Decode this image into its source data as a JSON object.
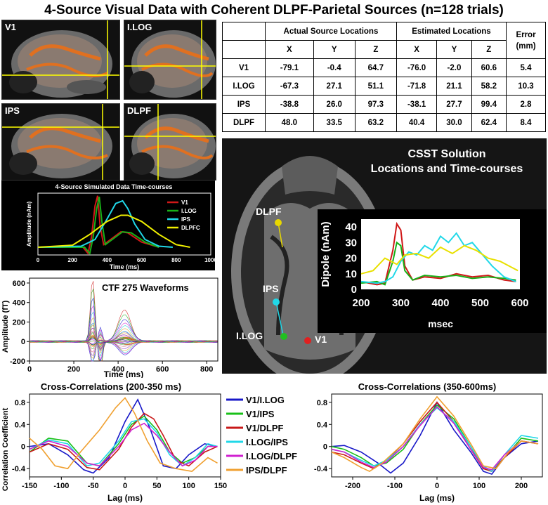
{
  "title": "4-Source Visual Data with Coherent DLPF-Parietal Sources (n=128 trials)",
  "mri_panels": [
    {
      "label": "V1"
    },
    {
      "label": "I.LOG"
    },
    {
      "label": "IPS"
    },
    {
      "label": "DLPF"
    }
  ],
  "table": {
    "group_headers": [
      "Actual Source Locations",
      "Estimated Locations",
      "Error",
      "(mm)"
    ],
    "columns": [
      "X",
      "Y",
      "Z",
      "X",
      "Y",
      "Z"
    ],
    "rows": [
      {
        "name": "V1",
        "values": [
          "-79.1",
          "-0.4",
          "64.7",
          "-76.0",
          "-2.0",
          "60.6"
        ],
        "error": "5.4"
      },
      {
        "name": "I.LOG",
        "values": [
          "-67.3",
          "27.1",
          "51.1",
          "-71.8",
          "21.1",
          "58.2"
        ],
        "error": "10.3"
      },
      {
        "name": "IPS",
        "values": [
          "-38.8",
          "26.0",
          "97.3",
          "-38.1",
          "27.7",
          "99.4"
        ],
        "error": "2.8"
      },
      {
        "name": "DLPF",
        "values": [
          "48.0",
          "33.5",
          "63.2",
          "40.4",
          "30.0",
          "62.4"
        ],
        "error": "8.4"
      }
    ]
  },
  "cssts": {
    "title_line1": "CSST Solution",
    "title_line2": "Locations and Time-courses",
    "labels": [
      "DLPF",
      "IPS",
      "I.LOG",
      "V1"
    ],
    "dot_colors": [
      "#e8d800",
      "#20d8e8",
      "#20c020",
      "#e02020"
    ]
  },
  "chart_data": [
    {
      "type": "line",
      "title": "4-Source Simulated Data Time-courses",
      "xlabel": "Time (ms)",
      "ylabel": "Amplitude (nAm)",
      "xlim": [
        0,
        1000
      ],
      "xticks": [
        "0",
        "200",
        "400",
        "600",
        "800",
        "1000"
      ],
      "legend_position": "right",
      "series": [
        {
          "name": "V1",
          "color": "#d01818",
          "x": [
            0,
            260,
            290,
            310,
            330,
            345,
            360,
            380,
            420,
            480,
            520,
            600,
            700
          ],
          "y": [
            0,
            0,
            -0.12,
            0.2,
            0.8,
            1.0,
            0.4,
            0.05,
            0.15,
            0.3,
            0.28,
            0.1,
            0
          ]
        },
        {
          "name": "I.LOG",
          "color": "#18b018",
          "x": [
            0,
            270,
            300,
            320,
            340,
            355,
            370,
            390,
            430,
            490,
            540,
            620,
            700
          ],
          "y": [
            0,
            0,
            -0.12,
            0.2,
            0.75,
            0.98,
            0.5,
            0.05,
            0.15,
            0.3,
            0.28,
            0.1,
            0
          ]
        },
        {
          "name": "IPS",
          "color": "#20d8e8",
          "x": [
            0,
            250,
            330,
            400,
            450,
            490,
            520,
            560,
            620,
            700,
            780
          ],
          "y": [
            0,
            0.02,
            0.15,
            0.55,
            0.85,
            0.9,
            0.75,
            0.45,
            0.15,
            0.02,
            0
          ]
        },
        {
          "name": "DLPFC",
          "color": "#f0f000",
          "x": [
            0,
            200,
            300,
            400,
            480,
            520,
            600,
            700,
            800,
            880
          ],
          "y": [
            0,
            0.04,
            0.25,
            0.5,
            0.62,
            0.62,
            0.5,
            0.25,
            0.05,
            0
          ]
        }
      ]
    },
    {
      "type": "line",
      "title": "CTF 275 Waveforms",
      "xlabel": "Time (ms)",
      "ylabel": "Amplitude (fT)",
      "xlim": [
        0,
        850
      ],
      "ylim": [
        -200,
        650
      ],
      "xticks": [
        "0",
        "200",
        "400",
        "600",
        "800"
      ],
      "yticks": [
        "-200",
        "0",
        "200",
        "400",
        "600"
      ]
    },
    {
      "type": "line",
      "title": "",
      "xlabel": "msec",
      "ylabel": "Dipole (nAm)",
      "xlim": [
        200,
        600
      ],
      "ylim": [
        0,
        45
      ],
      "xticks": [
        "200",
        "300",
        "400",
        "500",
        "600"
      ],
      "yticks": [
        "0",
        "10",
        "20",
        "30",
        "40"
      ],
      "series": [
        {
          "name": "V1",
          "color": "#d01818",
          "x": [
            200,
            240,
            260,
            280,
            290,
            300,
            310,
            330,
            360,
            400,
            440,
            480,
            520,
            560,
            590
          ],
          "y": [
            5,
            3,
            4,
            25,
            42,
            38,
            15,
            6,
            8,
            7,
            10,
            8,
            9,
            6,
            5
          ]
        },
        {
          "name": "I.LOG",
          "color": "#18b018",
          "x": [
            200,
            240,
            260,
            280,
            290,
            300,
            310,
            330,
            360,
            400,
            440,
            480,
            520,
            560,
            590
          ],
          "y": [
            4,
            5,
            3,
            18,
            30,
            28,
            12,
            6,
            9,
            8,
            9,
            7,
            8,
            7,
            6
          ]
        },
        {
          "name": "IPS",
          "color": "#20d8e8",
          "x": [
            200,
            240,
            260,
            280,
            300,
            320,
            340,
            360,
            380,
            400,
            420,
            440,
            460,
            480,
            500,
            530,
            560,
            590
          ],
          "y": [
            5,
            4,
            5,
            8,
            18,
            24,
            22,
            28,
            25,
            34,
            30,
            36,
            28,
            30,
            24,
            15,
            8,
            5
          ]
        },
        {
          "name": "DLPF",
          "color": "#e8e000",
          "x": [
            200,
            230,
            260,
            290,
            310,
            340,
            370,
            400,
            430,
            460,
            490,
            520,
            550,
            580,
            595
          ],
          "y": [
            10,
            12,
            20,
            16,
            22,
            23,
            20,
            27,
            23,
            28,
            25,
            20,
            18,
            14,
            12
          ]
        }
      ]
    },
    {
      "type": "line",
      "title": "Cross-Correlations (200-350 ms)",
      "xlabel": "Lag (ms)",
      "ylabel": "Correlation Coefficient",
      "xlim": [
        -150,
        150
      ],
      "ylim": [
        -0.55,
        0.95
      ],
      "xticks": [
        "-150",
        "-100",
        "-50",
        "0",
        "50",
        "100",
        "150"
      ],
      "yticks": [
        "-0.4",
        "0",
        "0.4",
        "0.8"
      ],
      "legend_position": "right",
      "series": [
        {
          "name": "V1/I.LOG",
          "color": "#1818c8",
          "x": [
            -150,
            -120,
            -90,
            -65,
            -50,
            -25,
            0,
            20,
            40,
            60,
            80,
            100,
            125,
            145
          ],
          "y": [
            0,
            0.05,
            -0.15,
            -0.42,
            -0.48,
            -0.2,
            0.45,
            0.85,
            0.3,
            -0.35,
            -0.4,
            -0.15,
            0.05,
            0
          ]
        },
        {
          "name": "V1/IPS",
          "color": "#18c018",
          "x": [
            -150,
            -120,
            -90,
            -60,
            -40,
            -10,
            10,
            30,
            50,
            70,
            90,
            110,
            130,
            145
          ],
          "y": [
            -0.1,
            0.15,
            0.1,
            -0.3,
            -0.35,
            0.05,
            0.4,
            0.55,
            0.3,
            -0.1,
            -0.3,
            -0.2,
            0,
            0
          ]
        },
        {
          "name": "V1/DLPF",
          "color": "#c81818",
          "x": [
            -150,
            -120,
            -90,
            -60,
            -40,
            -10,
            10,
            30,
            45,
            60,
            80,
            100,
            125,
            145
          ],
          "y": [
            -0.1,
            0.05,
            -0.05,
            -0.38,
            -0.42,
            -0.05,
            0.35,
            0.6,
            0.5,
            0.2,
            -0.25,
            -0.35,
            -0.1,
            0
          ]
        },
        {
          "name": "I.LOG/IPS",
          "color": "#20d8e8",
          "x": [
            -150,
            -120,
            -90,
            -60,
            -40,
            -10,
            10,
            30,
            50,
            70,
            90,
            110,
            130,
            145
          ],
          "y": [
            -0.05,
            0.12,
            0.05,
            -0.35,
            -0.3,
            0.1,
            0.45,
            0.5,
            0.25,
            -0.15,
            -0.35,
            -0.2,
            0.05,
            0
          ]
        },
        {
          "name": "I.LOG/DLPF",
          "color": "#d020d0",
          "x": [
            -150,
            -120,
            -90,
            -60,
            -40,
            -10,
            10,
            30,
            50,
            70,
            90,
            110,
            130,
            145
          ],
          "y": [
            -0.05,
            0.1,
            0,
            -0.3,
            -0.35,
            0,
            0.3,
            0.42,
            0.2,
            -0.1,
            -0.35,
            -0.25,
            0,
            0
          ]
        },
        {
          "name": "IPS/DLPF",
          "color": "#f0a030",
          "x": [
            -150,
            -130,
            -110,
            -90,
            -70,
            -40,
            -15,
            0,
            15,
            35,
            55,
            80,
            105,
            130,
            145
          ],
          "y": [
            0.15,
            -0.05,
            -0.35,
            -0.4,
            -0.1,
            0.3,
            0.7,
            0.88,
            0.6,
            0.1,
            -0.3,
            -0.4,
            -0.45,
            -0.2,
            -0.3
          ]
        }
      ]
    },
    {
      "type": "line",
      "title": "Cross-Correlations (350-600ms)",
      "xlabel": "Lag (ms)",
      "ylabel": "",
      "xlim": [
        -250,
        250
      ],
      "ylim": [
        -0.55,
        0.95
      ],
      "xticks": [
        "-200",
        "-100",
        "0",
        "100",
        "200"
      ],
      "yticks": [
        "-0.4",
        "0",
        "0.4",
        "0.8"
      ],
      "series": [
        {
          "name": "V1/I.LOG",
          "color": "#1818c8",
          "x": [
            -250,
            -220,
            -180,
            -140,
            -110,
            -80,
            -40,
            0,
            40,
            80,
            110,
            130,
            160,
            200,
            240
          ],
          "y": [
            0,
            0.02,
            -0.1,
            -0.3,
            -0.48,
            -0.3,
            0.2,
            0.8,
            0.3,
            -0.1,
            -0.45,
            -0.5,
            -0.2,
            0.05,
            0.1
          ]
        },
        {
          "name": "V1/IPS",
          "color": "#18c018",
          "x": [
            -250,
            -220,
            -180,
            -150,
            -120,
            -80,
            -40,
            0,
            40,
            80,
            110,
            130,
            160,
            200,
            240
          ],
          "y": [
            0,
            -0.05,
            -0.2,
            -0.35,
            -0.3,
            -0.05,
            0.4,
            0.75,
            0.5,
            0.0,
            -0.4,
            -0.45,
            -0.2,
            0.15,
            0.1
          ]
        },
        {
          "name": "V1/DLPF",
          "color": "#c81818",
          "x": [
            -250,
            -220,
            -180,
            -150,
            -120,
            -80,
            -40,
            0,
            40,
            80,
            110,
            130,
            160,
            200,
            240
          ],
          "y": [
            -0.1,
            -0.15,
            -0.3,
            -0.4,
            -0.25,
            0.05,
            0.45,
            0.8,
            0.45,
            -0.05,
            -0.4,
            -0.45,
            -0.2,
            0.1,
            0.05
          ]
        },
        {
          "name": "I.LOG/IPS",
          "color": "#20d8e8",
          "x": [
            -250,
            -220,
            -180,
            -150,
            -120,
            -80,
            -40,
            0,
            40,
            80,
            110,
            130,
            160,
            200,
            240
          ],
          "y": [
            -0.05,
            -0.1,
            -0.25,
            -0.35,
            -0.25,
            0.0,
            0.4,
            0.7,
            0.45,
            0.0,
            -0.35,
            -0.45,
            -0.15,
            0.2,
            0.15
          ]
        },
        {
          "name": "I.LOG/DLPF",
          "color": "#d020d0",
          "x": [
            -250,
            -220,
            -180,
            -150,
            -120,
            -80,
            -40,
            0,
            40,
            80,
            110,
            130,
            160,
            200,
            240
          ],
          "y": [
            -0.05,
            -0.1,
            -0.28,
            -0.38,
            -0.28,
            0.0,
            0.38,
            0.72,
            0.42,
            -0.05,
            -0.38,
            -0.42,
            -0.15,
            0.1,
            0.05
          ]
        },
        {
          "name": "IPS/DLPF",
          "color": "#f0a030",
          "x": [
            -250,
            -220,
            -180,
            -160,
            -130,
            -80,
            -40,
            0,
            40,
            80,
            110,
            140,
            170,
            200,
            240
          ],
          "y": [
            -0.1,
            -0.2,
            -0.38,
            -0.45,
            -0.3,
            0.05,
            0.5,
            0.9,
            0.55,
            0.05,
            -0.35,
            -0.4,
            -0.1,
            0.1,
            0.05
          ]
        }
      ]
    }
  ]
}
